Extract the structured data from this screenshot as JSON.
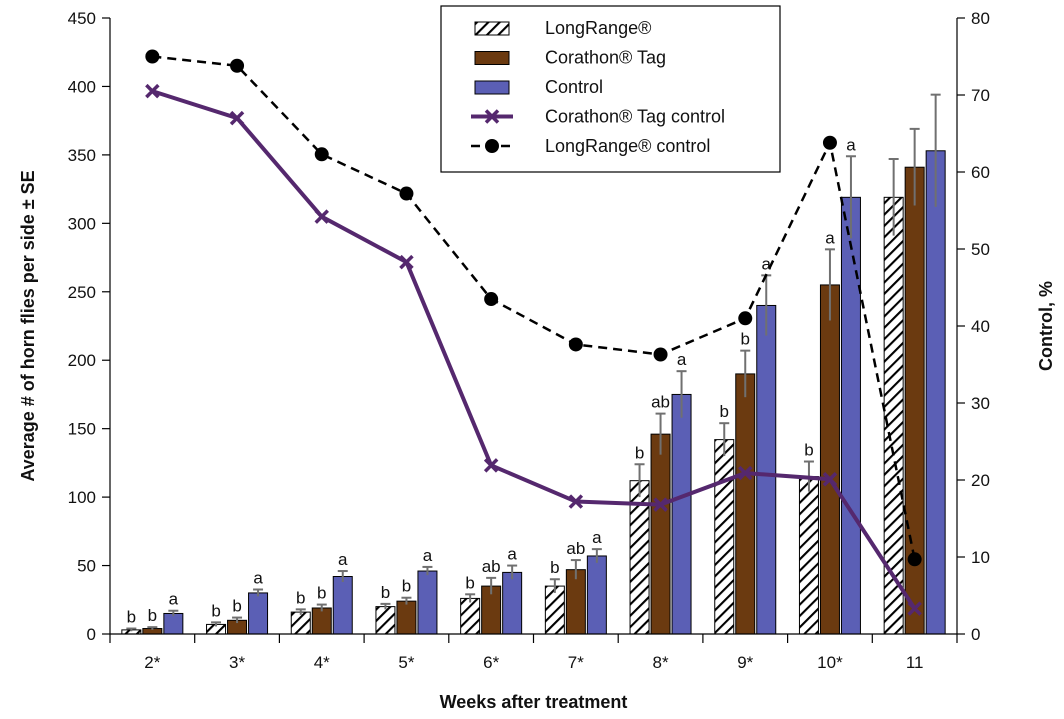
{
  "chart_data": {
    "type": "bar",
    "xlabel": "Weeks after treatment",
    "ylabel": "Average # of horn flies per side ± SE",
    "y2label": "Control, %",
    "categories": [
      "2*",
      "3*",
      "4*",
      "5*",
      "6*",
      "7*",
      "8*",
      "9*",
      "10*",
      "11"
    ],
    "ylim": [
      0,
      450
    ],
    "yticks": [
      0,
      50,
      100,
      150,
      200,
      250,
      300,
      350,
      400,
      450
    ],
    "y2lim": [
      0,
      80
    ],
    "y2ticks": [
      0,
      10,
      20,
      30,
      40,
      50,
      60,
      70,
      80
    ],
    "grid": false,
    "legend_position": "top-center",
    "series": [
      {
        "name": "LongRange®",
        "kind": "bar",
        "pattern": "diagonal-hatch",
        "color": "#000000",
        "values": [
          3,
          7,
          16,
          20,
          26,
          35,
          112,
          142,
          115,
          319
        ],
        "errors": [
          1,
          1.5,
          2,
          2,
          3,
          5,
          12,
          12,
          11,
          28
        ],
        "labels": [
          "b",
          "b",
          "b",
          "b",
          "b",
          "b",
          "b",
          "b",
          "b",
          ""
        ]
      },
      {
        "name": "Corathon® Tag",
        "kind": "bar",
        "color": "#6b3a10",
        "values": [
          4,
          10,
          19,
          24,
          35,
          47,
          146,
          190,
          255,
          341
        ],
        "errors": [
          1,
          2,
          2.5,
          2.5,
          6,
          7,
          15,
          17,
          26,
          28
        ],
        "labels": [
          "b",
          "b",
          "b",
          "b",
          "ab",
          "ab",
          "ab",
          "b",
          "a",
          ""
        ]
      },
      {
        "name": "Control",
        "kind": "bar",
        "color": "#5b5fb5",
        "values": [
          15,
          30,
          42,
          46,
          45,
          57,
          175,
          240,
          319,
          353
        ],
        "errors": [
          2,
          2.5,
          4,
          3,
          5,
          5,
          17,
          22,
          30,
          41
        ],
        "labels": [
          "a",
          "a",
          "a",
          "a",
          "a",
          "a",
          "a",
          "a",
          "a",
          ""
        ]
      },
      {
        "name": "Corathon® Tag control",
        "kind": "line",
        "axis": "right",
        "marker": "x",
        "color": "#55286e",
        "values": [
          70.5,
          67,
          54.2,
          48.3,
          21.9,
          17.2,
          16.8,
          20.9,
          20.1,
          3.3
        ]
      },
      {
        "name": "LongRange® control",
        "kind": "line",
        "axis": "right",
        "marker": "circle",
        "dashed": true,
        "color": "#000000",
        "values": [
          75,
          73.8,
          62.3,
          57.2,
          43.5,
          37.6,
          36.3,
          41,
          63.8,
          9.7
        ]
      }
    ]
  }
}
